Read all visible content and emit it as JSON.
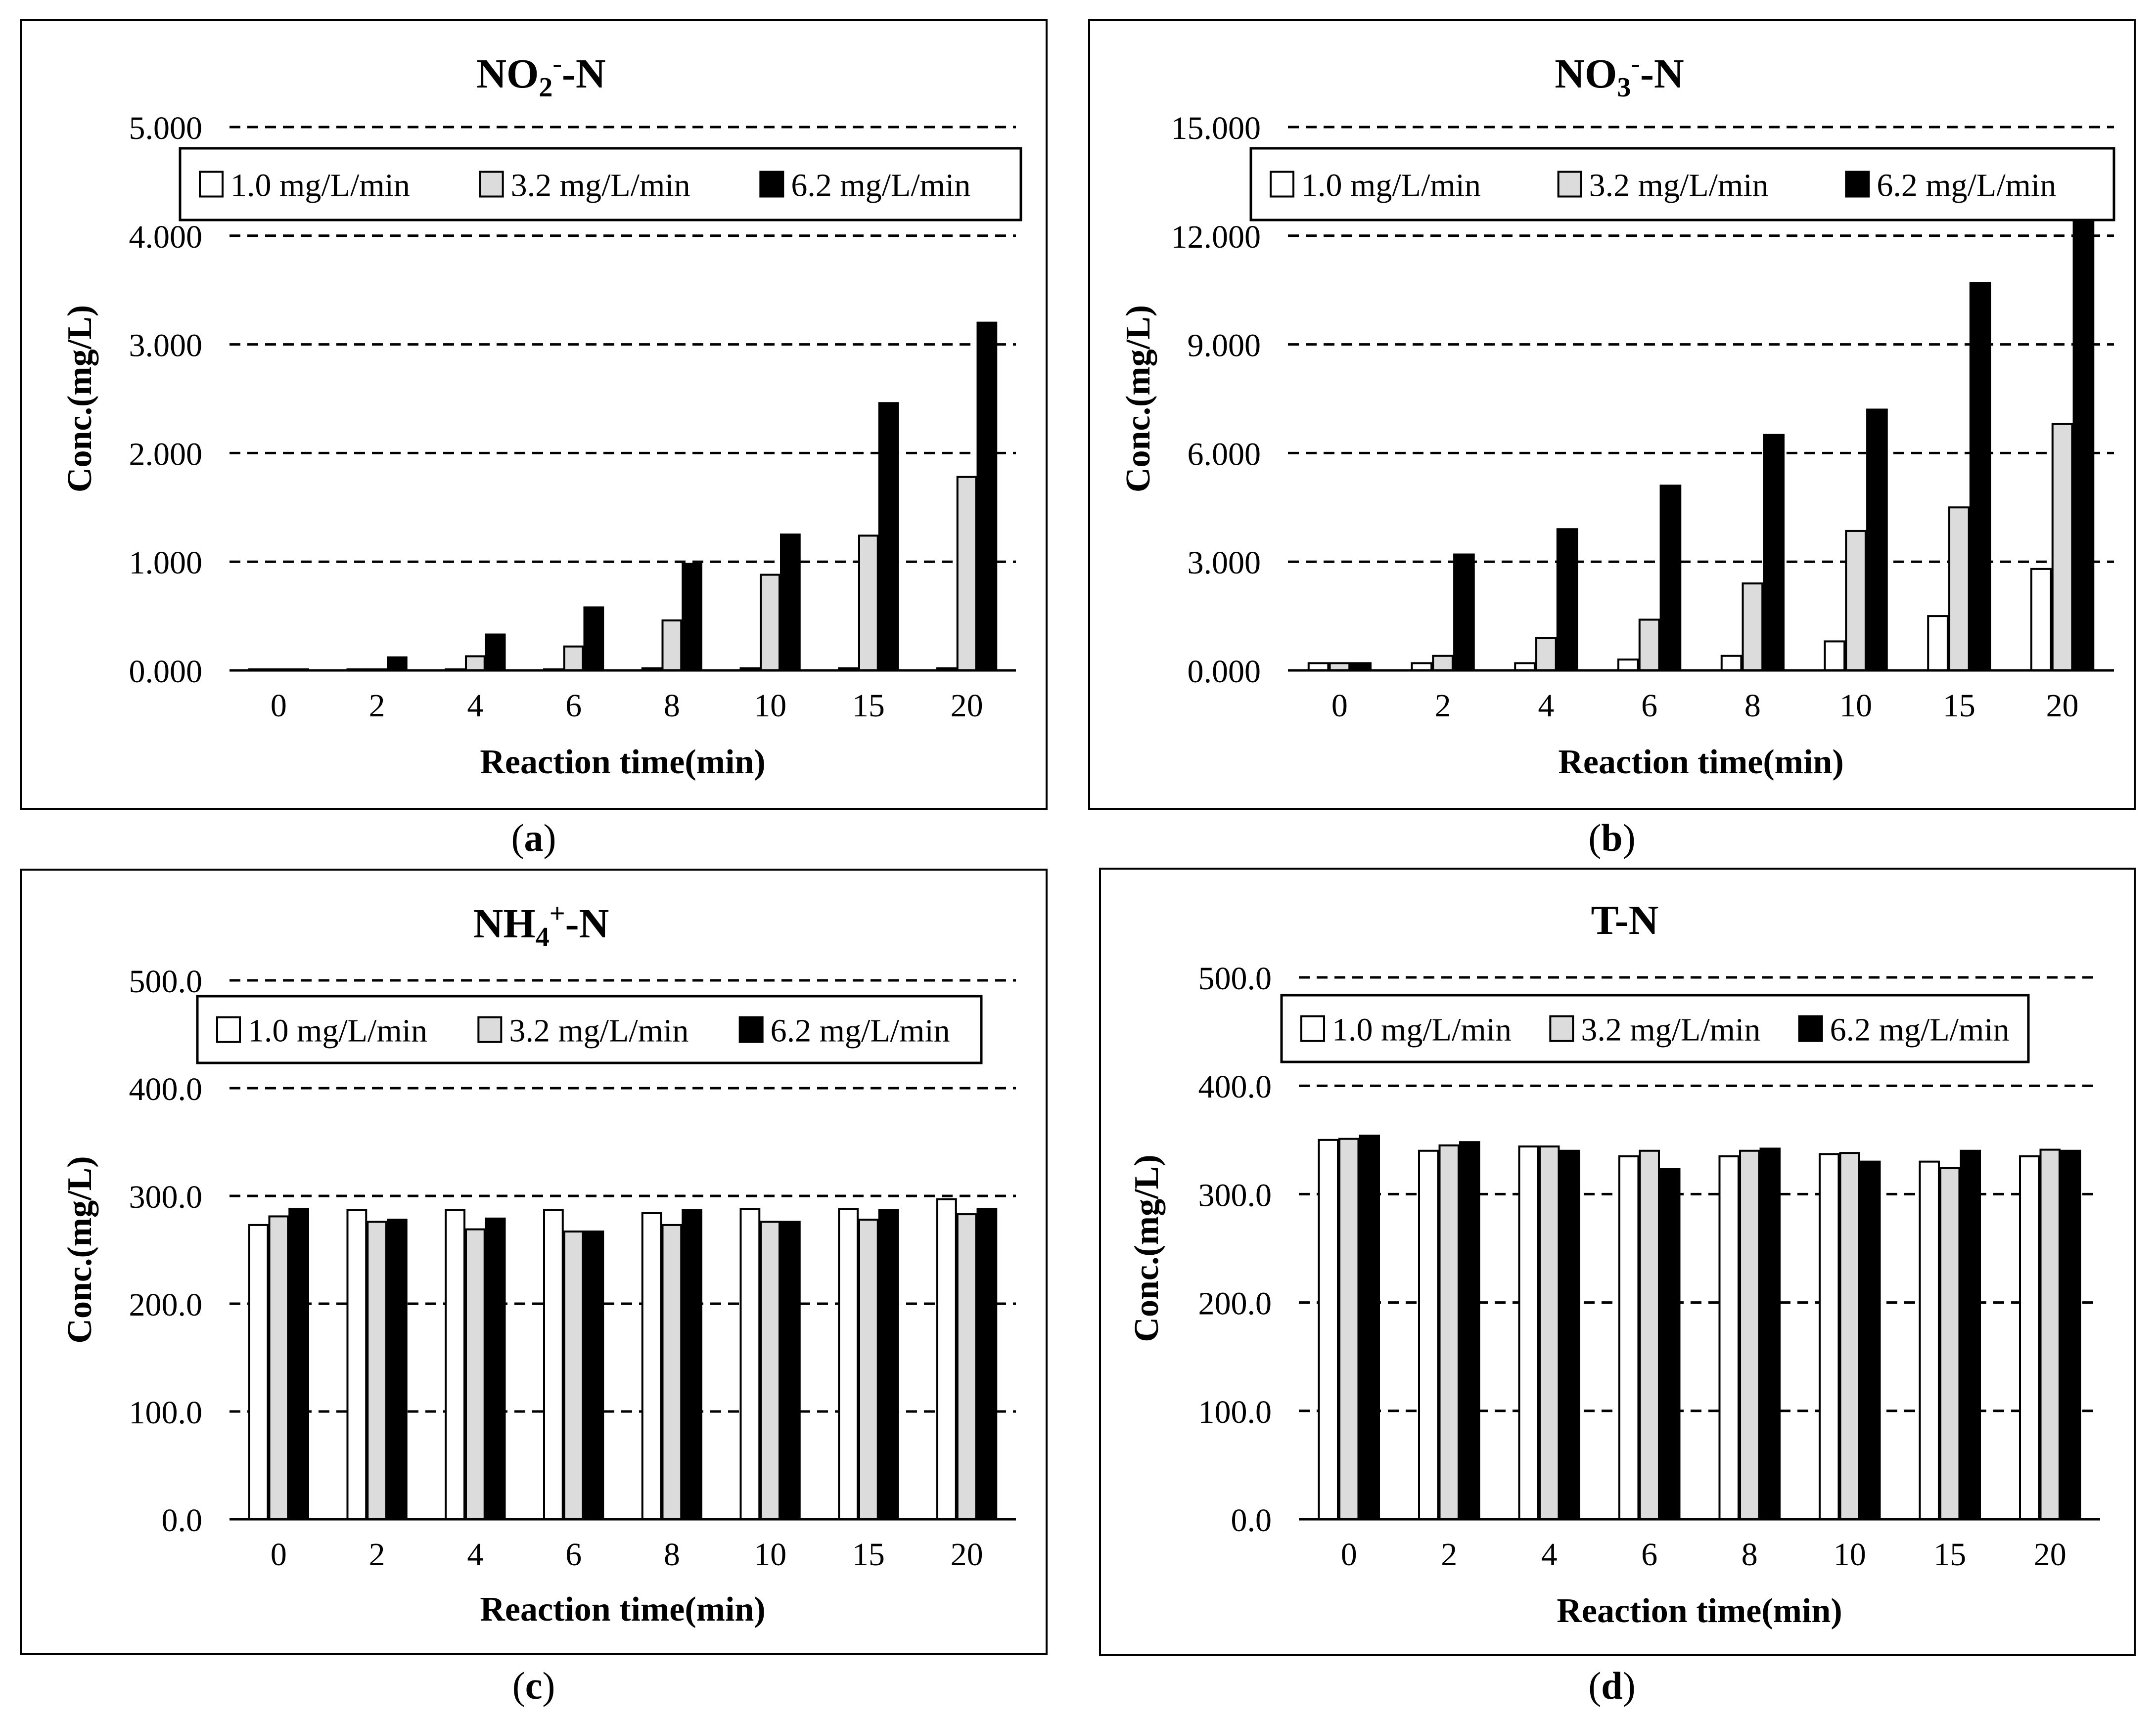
{
  "chart_data": [
    {
      "type": "bar",
      "title": {
        "base": "NO",
        "sub": "2",
        "sup": "-",
        "rest": "-N"
      },
      "caption": "a",
      "xlabel": "Reaction time(min)",
      "ylabel": "Conc.(mg/L)",
      "categories": [
        "0",
        "2",
        "4",
        "6",
        "8",
        "10",
        "15",
        "20"
      ],
      "yticks": [
        "0.000",
        "1.000",
        "2.000",
        "3.000",
        "4.000",
        "5.000"
      ],
      "ylim": [
        0,
        5
      ],
      "series": [
        {
          "name": "1.0 mg/L/min",
          "values": [
            0.01,
            0.01,
            0.01,
            0.01,
            0.02,
            0.02,
            0.02,
            0.02
          ]
        },
        {
          "name": "3.2 mg/L/min",
          "values": [
            0.01,
            0.01,
            0.13,
            0.22,
            0.46,
            0.88,
            1.24,
            1.78
          ]
        },
        {
          "name": "6.2 mg/L/min",
          "values": [
            0.01,
            0.12,
            0.33,
            0.58,
            0.98,
            1.25,
            2.46,
            3.2
          ]
        }
      ]
    },
    {
      "type": "bar",
      "title": {
        "base": "NO",
        "sub": "3",
        "sup": "-",
        "rest": "-N"
      },
      "caption": "b",
      "xlabel": "Reaction time(min)",
      "ylabel": "Conc.(mg/L)",
      "categories": [
        "0",
        "2",
        "4",
        "6",
        "8",
        "10",
        "15",
        "20"
      ],
      "yticks": [
        "0.000",
        "3.000",
        "6.000",
        "9.000",
        "12.000",
        "15.000"
      ],
      "ylim": [
        0,
        15
      ],
      "series": [
        {
          "name": "1.0 mg/L/min",
          "values": [
            0.2,
            0.2,
            0.2,
            0.3,
            0.4,
            0.8,
            1.5,
            2.8
          ]
        },
        {
          "name": "3.2 mg/L/min",
          "values": [
            0.2,
            0.4,
            0.9,
            1.4,
            2.4,
            3.85,
            4.5,
            6.8
          ]
        },
        {
          "name": "6.2 mg/L/min",
          "values": [
            0.2,
            3.2,
            3.9,
            5.1,
            6.5,
            7.2,
            10.7,
            12.9
          ]
        }
      ]
    },
    {
      "type": "bar",
      "title": {
        "base": "NH",
        "sub": "4",
        "sup": "+",
        "rest": "-N"
      },
      "caption": "c",
      "xlabel": "Reaction time(min)",
      "ylabel": "Conc.(mg/L)",
      "categories": [
        "0",
        "2",
        "4",
        "6",
        "8",
        "10",
        "15",
        "20"
      ],
      "yticks": [
        "0.0",
        "100.0",
        "200.0",
        "300.0",
        "400.0",
        "500.0"
      ],
      "ylim": [
        0,
        500
      ],
      "series": [
        {
          "name": "1.0 mg/L/min",
          "values": [
            273,
            287,
            287,
            287,
            284,
            288,
            288,
            297
          ]
        },
        {
          "name": "3.2 mg/L/min",
          "values": [
            281,
            276,
            269,
            267,
            273,
            276,
            278,
            283
          ]
        },
        {
          "name": "6.2 mg/L/min",
          "values": [
            288,
            278,
            279,
            267,
            287,
            276,
            287,
            288
          ]
        }
      ]
    },
    {
      "type": "bar",
      "title": {
        "base": "T-N",
        "sub": "",
        "sup": "",
        "rest": ""
      },
      "caption": "d",
      "xlabel": "Reaction time(min)",
      "ylabel": "Conc.(mg/L)",
      "categories": [
        "0",
        "2",
        "4",
        "6",
        "8",
        "10",
        "15",
        "20"
      ],
      "yticks": [
        "0.0",
        "100.0",
        "200.0",
        "300.0",
        "400.0",
        "500.0"
      ],
      "ylim": [
        0,
        500
      ],
      "series": [
        {
          "name": "1.0 mg/L/min",
          "values": [
            350,
            340,
            344,
            335,
            335,
            337,
            330,
            335
          ]
        },
        {
          "name": "3.2 mg/L/min",
          "values": [
            351,
            345,
            344,
            340,
            340,
            338,
            324,
            341
          ]
        },
        {
          "name": "6.2 mg/L/min",
          "values": [
            354,
            348,
            340,
            323,
            342,
            330,
            340,
            340
          ]
        }
      ]
    }
  ],
  "colors": {
    "series": [
      "#ffffff",
      "#dcdcdc",
      "#000000"
    ],
    "stroke": "#000000",
    "grid": "#000000"
  }
}
